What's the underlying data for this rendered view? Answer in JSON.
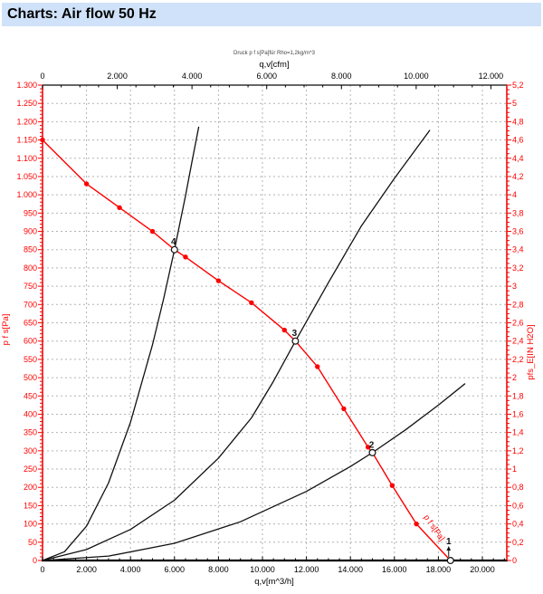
{
  "title_bar": {
    "text": "Charts: Air flow 50 Hz"
  },
  "colors": {
    "title_bg": "#cfe2fa",
    "red": "#ff0000",
    "black": "#111111",
    "grid": "#b3b3b3",
    "frame": "#000000",
    "subtitle": "#444444"
  },
  "chart_data": {
    "type": "line",
    "subtitle": "Druck p f s[Pa]für Rho=1,2kg/m^3",
    "axes": {
      "top": {
        "label": "q,v[cfm]",
        "tick_labels": [
          "0",
          "2.000",
          "4.000",
          "6.000",
          "8.000",
          "10.000",
          "12.000"
        ],
        "tick_step": 2000,
        "minor_step": 500,
        "minor_max": 12400,
        "unit_to_m3h": 1.699
      },
      "bottom": {
        "label": "q,v[m^3/h]",
        "tick_labels": [
          "0",
          "2.000",
          "4.000",
          "6.000",
          "8.000",
          "10.000",
          "12.000",
          "14.000",
          "16.000",
          "18.000",
          "20.000"
        ],
        "tick_step": 2000,
        "minor_step": 500,
        "minor_max": 21000,
        "range": [
          0,
          21100
        ]
      },
      "left": {
        "label": "p f s[Pa]",
        "max": 1300,
        "major_step": 50,
        "minor_step": 10,
        "tick_labels": [
          "1.300",
          "1.250",
          "1.200",
          "1.150",
          "1.100",
          "1.050",
          "1.000",
          "950",
          "900",
          "850",
          "800",
          "750",
          "700",
          "650",
          "600",
          "550",
          "500",
          "450",
          "400",
          "350",
          "300",
          "250",
          "200",
          "150",
          "100",
          "50",
          "0"
        ]
      },
      "right": {
        "label": "pfs_E[IN H2O]",
        "max": 5.2,
        "major_step": 0.2,
        "minor_step": 0.05,
        "tick_labels": [
          "5,2",
          "5",
          "4,8",
          "4,6",
          "4,4",
          "4,2",
          "4",
          "3,8",
          "3,6",
          "3,4",
          "3,2",
          "3",
          "2,8",
          "2,6",
          "2,4",
          "2,2",
          "2",
          "1,8",
          "1,6",
          "1,4",
          "1,2",
          "1",
          "0,8",
          "0,6",
          "0,4",
          "0,2",
          "0"
        ]
      }
    },
    "fan_curve": {
      "name": "p f s[Pa]",
      "points": [
        [
          0,
          1150
        ],
        [
          2000,
          1030
        ],
        [
          3500,
          965
        ],
        [
          5000,
          900
        ],
        [
          6000,
          850
        ],
        [
          6500,
          830
        ],
        [
          8000,
          765
        ],
        [
          9500,
          705
        ],
        [
          11000,
          630
        ],
        [
          11500,
          600
        ],
        [
          12500,
          530
        ],
        [
          13700,
          415
        ],
        [
          14800,
          310
        ],
        [
          15000,
          295
        ],
        [
          15900,
          205
        ],
        [
          17000,
          100
        ],
        [
          18550,
          0
        ]
      ],
      "markers": [
        [
          0,
          1150
        ],
        [
          2000,
          1030
        ],
        [
          3500,
          965
        ],
        [
          5000,
          900
        ],
        [
          6500,
          830
        ],
        [
          8000,
          765
        ],
        [
          9500,
          705
        ],
        [
          11000,
          630
        ],
        [
          12500,
          530
        ],
        [
          13700,
          415
        ],
        [
          14800,
          310
        ],
        [
          15900,
          205
        ],
        [
          17000,
          100
        ]
      ]
    },
    "operating_points": [
      {
        "label": "4",
        "q": 6000,
        "p": 850
      },
      {
        "label": "3",
        "q": 11500,
        "p": 600
      },
      {
        "label": "2",
        "q": 15000,
        "p": 295
      },
      {
        "label": "1",
        "q": 18550,
        "p": 0
      }
    ],
    "system_curves": [
      {
        "name": "system-curve-1",
        "points": [
          [
            0,
            0
          ],
          [
            1000,
            24
          ],
          [
            2000,
            94
          ],
          [
            3000,
            212
          ],
          [
            4000,
            378
          ],
          [
            5000,
            590
          ],
          [
            5500,
            714
          ],
          [
            6000,
            850
          ],
          [
            6500,
            997
          ],
          [
            6800,
            1092
          ],
          [
            7100,
            1185
          ]
        ]
      },
      {
        "name": "system-curve-2",
        "points": [
          [
            0,
            0
          ],
          [
            2000,
            30
          ],
          [
            4000,
            85
          ],
          [
            6000,
            165
          ],
          [
            8000,
            280
          ],
          [
            9500,
            390
          ],
          [
            10500,
            490
          ],
          [
            11500,
            600
          ],
          [
            13000,
            760
          ],
          [
            14500,
            915
          ],
          [
            16000,
            1045
          ],
          [
            17600,
            1176
          ]
        ]
      },
      {
        "name": "system-curve-3",
        "points": [
          [
            0,
            0
          ],
          [
            3000,
            12
          ],
          [
            6000,
            47
          ],
          [
            9000,
            106
          ],
          [
            12000,
            189
          ],
          [
            14000,
            257
          ],
          [
            15000,
            295
          ],
          [
            16500,
            357
          ],
          [
            18000,
            425
          ],
          [
            19200,
            483
          ]
        ]
      }
    ]
  }
}
